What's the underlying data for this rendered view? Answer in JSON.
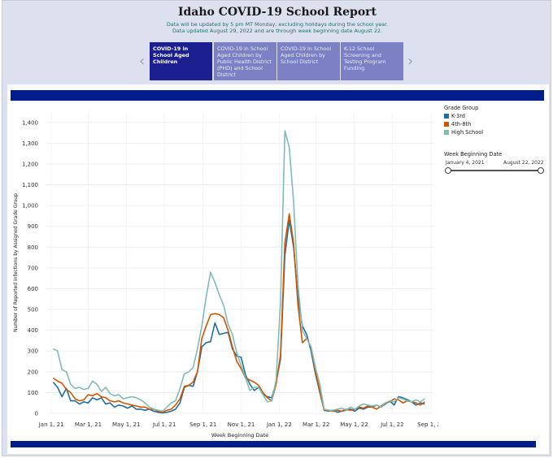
{
  "header": {
    "title": "Idaho COVID-19 School Report",
    "subtitle_line1": "Data will be updated by 5 pm MT Monday, excluding holidays during the school year.",
    "subtitle_line2": "Data updated August 29, 2022 and are through week beginning date August 22."
  },
  "tabs": [
    {
      "label": "COVID-19 in School Aged Children",
      "active": true
    },
    {
      "label": "COVID-19 in School Aged Children by Public Health District (PHD) and School District",
      "active": false
    },
    {
      "label": "COVID-19 in School Aged Children by School District",
      "active": false
    },
    {
      "label": "K-12 School Screening and Testing Program Funding",
      "active": false
    }
  ],
  "nav": {
    "prev_icon": "‹",
    "next_icon": "›"
  },
  "legend": {
    "title": "Grade Group",
    "items": [
      {
        "label": "K-3rd",
        "color": "#1f6e9e"
      },
      {
        "label": "4th-8th",
        "color": "#d35400"
      },
      {
        "label": "High School",
        "color": "#7fbcb5"
      }
    ]
  },
  "date_filter": {
    "title": "Week Beginning Date",
    "start": "January 4, 2021",
    "end": "August 22, 2022"
  },
  "chart_data": {
    "type": "line",
    "xlabel": "Week Beginning Date",
    "ylabel": "Number of Reported Infections by Assigned Grade Group",
    "ylim": [
      0,
      1450
    ],
    "yticks": [
      0,
      100,
      200,
      300,
      400,
      500,
      600,
      700,
      800,
      900,
      1000,
      1100,
      1200,
      1300,
      1400
    ],
    "ytick_labels": [
      "0",
      "100",
      "200",
      "300",
      "400",
      "500",
      "600",
      "700",
      "800",
      "900",
      "1,000",
      "1,100",
      "1,200",
      "1,300",
      "1,400"
    ],
    "xticks": [
      {
        "label": "Jan 1, 21",
        "day": 0
      },
      {
        "label": "Mar 1, 21",
        "day": 59
      },
      {
        "label": "May 1, 21",
        "day": 120
      },
      {
        "label": "Jul 1, 21",
        "day": 181
      },
      {
        "label": "Sep 1, 21",
        "day": 243
      },
      {
        "label": "Nov 1, 21",
        "day": 304
      },
      {
        "label": "Jan 1, 22",
        "day": 365
      },
      {
        "label": "Mar 1, 22",
        "day": 424
      },
      {
        "label": "May 1, 22",
        "day": 485
      },
      {
        "label": "Jul 1, 22",
        "day": 546
      },
      {
        "label": "Sep 1, 22",
        "day": 608
      }
    ],
    "series": [
      {
        "name": "K-3rd",
        "color": "#1f6e9e",
        "points": [
          [
            3,
            150
          ],
          [
            10,
            125
          ],
          [
            17,
            80
          ],
          [
            24,
            120
          ],
          [
            31,
            60
          ],
          [
            38,
            60
          ],
          [
            45,
            45
          ],
          [
            52,
            55
          ],
          [
            59,
            50
          ],
          [
            66,
            75
          ],
          [
            73,
            65
          ],
          [
            80,
            75
          ],
          [
            87,
            45
          ],
          [
            94,
            50
          ],
          [
            101,
            30
          ],
          [
            108,
            40
          ],
          [
            115,
            35
          ],
          [
            122,
            25
          ],
          [
            129,
            35
          ],
          [
            136,
            20
          ],
          [
            143,
            20
          ],
          [
            150,
            15
          ],
          [
            157,
            20
          ],
          [
            164,
            10
          ],
          [
            171,
            5
          ],
          [
            178,
            2
          ],
          [
            185,
            5
          ],
          [
            192,
            10
          ],
          [
            199,
            20
          ],
          [
            206,
            50
          ],
          [
            213,
            125
          ],
          [
            220,
            135
          ],
          [
            227,
            130
          ],
          [
            234,
            200
          ],
          [
            241,
            320
          ],
          [
            248,
            340
          ],
          [
            255,
            345
          ],
          [
            262,
            435
          ],
          [
            269,
            380
          ],
          [
            276,
            385
          ],
          [
            283,
            390
          ],
          [
            290,
            310
          ],
          [
            297,
            275
          ],
          [
            304,
            270
          ],
          [
            311,
            185
          ],
          [
            318,
            140
          ],
          [
            325,
            110
          ],
          [
            332,
            125
          ],
          [
            339,
            90
          ],
          [
            346,
            80
          ],
          [
            353,
            75
          ],
          [
            360,
            150
          ],
          [
            367,
            260
          ],
          [
            374,
            760
          ],
          [
            381,
            930
          ],
          [
            388,
            800
          ],
          [
            395,
            560
          ],
          [
            402,
            420
          ],
          [
            409,
            380
          ],
          [
            416,
            300
          ],
          [
            423,
            190
          ],
          [
            430,
            100
          ],
          [
            437,
            15
          ],
          [
            444,
            10
          ],
          [
            451,
            15
          ],
          [
            458,
            5
          ],
          [
            465,
            10
          ],
          [
            472,
            15
          ],
          [
            479,
            20
          ],
          [
            486,
            10
          ],
          [
            493,
            25
          ],
          [
            500,
            20
          ],
          [
            507,
            30
          ],
          [
            514,
            30
          ],
          [
            521,
            40
          ],
          [
            528,
            30
          ],
          [
            535,
            45
          ],
          [
            542,
            60
          ],
          [
            549,
            40
          ],
          [
            556,
            80
          ],
          [
            563,
            75
          ],
          [
            570,
            65
          ],
          [
            577,
            55
          ],
          [
            584,
            40
          ],
          [
            591,
            50
          ],
          [
            598,
            45
          ]
        ]
      },
      {
        "name": "4th-8th",
        "color": "#d35400",
        "points": [
          [
            3,
            170
          ],
          [
            10,
            155
          ],
          [
            17,
            145
          ],
          [
            24,
            115
          ],
          [
            31,
            100
          ],
          [
            38,
            70
          ],
          [
            45,
            60
          ],
          [
            52,
            65
          ],
          [
            59,
            90
          ],
          [
            66,
            85
          ],
          [
            73,
            95
          ],
          [
            80,
            80
          ],
          [
            87,
            75
          ],
          [
            94,
            60
          ],
          [
            101,
            55
          ],
          [
            108,
            60
          ],
          [
            115,
            50
          ],
          [
            122,
            45
          ],
          [
            129,
            40
          ],
          [
            136,
            35
          ],
          [
            143,
            30
          ],
          [
            150,
            30
          ],
          [
            157,
            20
          ],
          [
            164,
            20
          ],
          [
            171,
            10
          ],
          [
            178,
            5
          ],
          [
            185,
            15
          ],
          [
            192,
            20
          ],
          [
            199,
            40
          ],
          [
            206,
            70
          ],
          [
            213,
            130
          ],
          [
            220,
            135
          ],
          [
            227,
            150
          ],
          [
            234,
            200
          ],
          [
            241,
            360
          ],
          [
            248,
            420
          ],
          [
            255,
            475
          ],
          [
            262,
            480
          ],
          [
            269,
            475
          ],
          [
            276,
            460
          ],
          [
            283,
            400
          ],
          [
            290,
            320
          ],
          [
            297,
            250
          ],
          [
            304,
            215
          ],
          [
            311,
            170
          ],
          [
            318,
            160
          ],
          [
            325,
            150
          ],
          [
            332,
            135
          ],
          [
            339,
            100
          ],
          [
            346,
            75
          ],
          [
            353,
            60
          ],
          [
            360,
            140
          ],
          [
            367,
            280
          ],
          [
            374,
            820
          ],
          [
            381,
            960
          ],
          [
            388,
            820
          ],
          [
            395,
            520
          ],
          [
            402,
            340
          ],
          [
            409,
            360
          ],
          [
            416,
            320
          ],
          [
            423,
            200
          ],
          [
            430,
            110
          ],
          [
            437,
            15
          ],
          [
            444,
            15
          ],
          [
            451,
            10
          ],
          [
            458,
            15
          ],
          [
            465,
            10
          ],
          [
            472,
            20
          ],
          [
            479,
            15
          ],
          [
            486,
            20
          ],
          [
            493,
            30
          ],
          [
            500,
            25
          ],
          [
            507,
            35
          ],
          [
            514,
            30
          ],
          [
            521,
            20
          ],
          [
            528,
            35
          ],
          [
            535,
            50
          ],
          [
            542,
            55
          ],
          [
            549,
            70
          ],
          [
            556,
            65
          ],
          [
            563,
            50
          ],
          [
            570,
            60
          ],
          [
            577,
            55
          ],
          [
            584,
            50
          ],
          [
            591,
            40
          ],
          [
            598,
            55
          ]
        ]
      },
      {
        "name": "High School",
        "color": "#7fbcb5",
        "points": [
          [
            3,
            310
          ],
          [
            10,
            300
          ],
          [
            17,
            210
          ],
          [
            24,
            200
          ],
          [
            31,
            140
          ],
          [
            38,
            120
          ],
          [
            45,
            125
          ],
          [
            52,
            115
          ],
          [
            59,
            120
          ],
          [
            66,
            155
          ],
          [
            73,
            140
          ],
          [
            80,
            105
          ],
          [
            87,
            125
          ],
          [
            94,
            95
          ],
          [
            101,
            85
          ],
          [
            108,
            90
          ],
          [
            115,
            70
          ],
          [
            122,
            75
          ],
          [
            129,
            80
          ],
          [
            136,
            75
          ],
          [
            143,
            65
          ],
          [
            150,
            50
          ],
          [
            157,
            30
          ],
          [
            164,
            20
          ],
          [
            171,
            15
          ],
          [
            178,
            10
          ],
          [
            185,
            30
          ],
          [
            192,
            50
          ],
          [
            199,
            60
          ],
          [
            206,
            120
          ],
          [
            213,
            190
          ],
          [
            220,
            200
          ],
          [
            227,
            220
          ],
          [
            234,
            310
          ],
          [
            241,
            420
          ],
          [
            248,
            560
          ],
          [
            255,
            680
          ],
          [
            262,
            630
          ],
          [
            269,
            570
          ],
          [
            276,
            520
          ],
          [
            283,
            430
          ],
          [
            290,
            380
          ],
          [
            297,
            290
          ],
          [
            304,
            230
          ],
          [
            311,
            170
          ],
          [
            318,
            110
          ],
          [
            325,
            125
          ],
          [
            332,
            125
          ],
          [
            339,
            90
          ],
          [
            346,
            55
          ],
          [
            353,
            60
          ],
          [
            360,
            160
          ],
          [
            367,
            530
          ],
          [
            374,
            1360
          ],
          [
            381,
            1280
          ],
          [
            388,
            1020
          ],
          [
            395,
            620
          ],
          [
            402,
            400
          ],
          [
            409,
            360
          ],
          [
            416,
            320
          ],
          [
            423,
            220
          ],
          [
            430,
            140
          ],
          [
            437,
            20
          ],
          [
            444,
            15
          ],
          [
            451,
            15
          ],
          [
            458,
            20
          ],
          [
            465,
            25
          ],
          [
            472,
            15
          ],
          [
            479,
            30
          ],
          [
            486,
            20
          ],
          [
            493,
            35
          ],
          [
            500,
            45
          ],
          [
            507,
            40
          ],
          [
            514,
            35
          ],
          [
            521,
            40
          ],
          [
            528,
            30
          ],
          [
            535,
            50
          ],
          [
            542,
            60
          ],
          [
            549,
            55
          ],
          [
            556,
            75
          ],
          [
            563,
            70
          ],
          [
            570,
            60
          ],
          [
            577,
            55
          ],
          [
            584,
            65
          ],
          [
            591,
            55
          ],
          [
            598,
            70
          ]
        ]
      }
    ]
  }
}
